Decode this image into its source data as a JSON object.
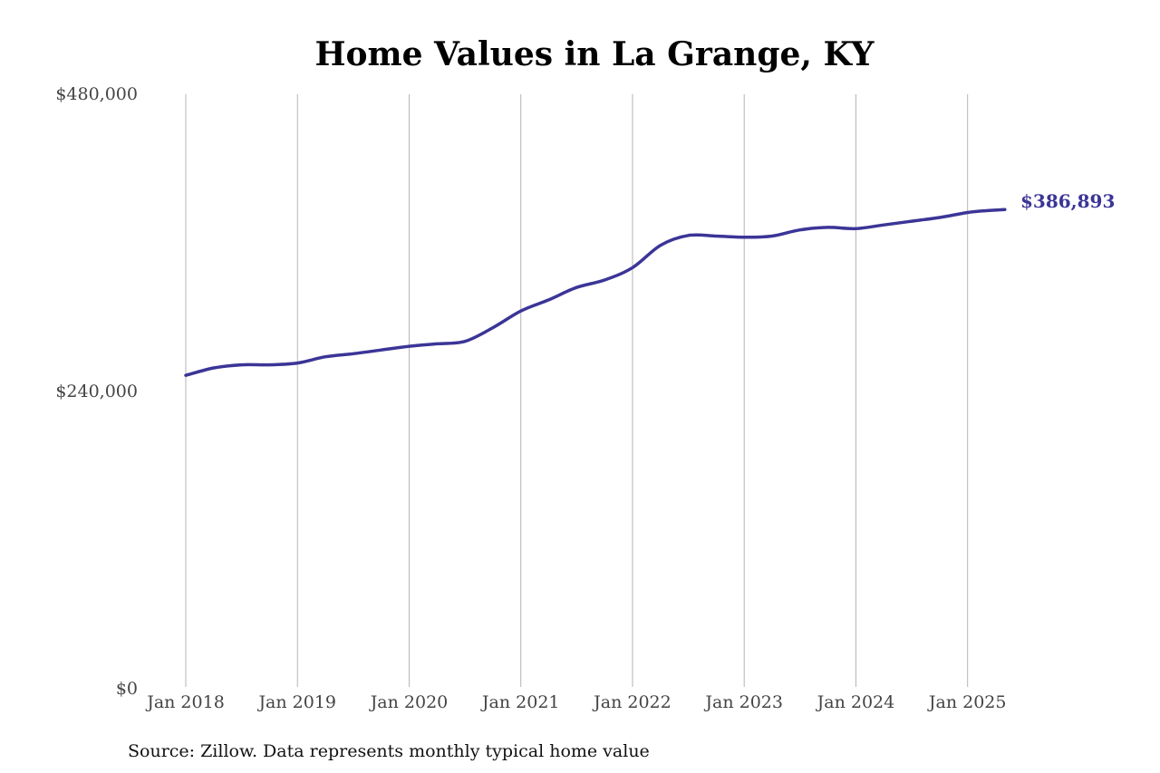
{
  "chart_data": {
    "type": "line",
    "title": "Home Values in La Grange, KY",
    "x_ticks": [
      "Jan 2018",
      "Jan 2019",
      "Jan 2020",
      "Jan 2021",
      "Jan 2022",
      "Jan 2023",
      "Jan 2024",
      "Jan 2025"
    ],
    "y_ticks": [
      "$0",
      "$240,000",
      "$480,000"
    ],
    "ylim": [
      0,
      480000
    ],
    "xlim": [
      "2018-01",
      "2025-05"
    ],
    "grid": "vertical",
    "end_label": "$386,893",
    "series": [
      {
        "color": "#3b3597",
        "points": [
          {
            "x": "2018-01",
            "y": 253000
          },
          {
            "x": "2018-04",
            "y": 259000
          },
          {
            "x": "2018-07",
            "y": 261500
          },
          {
            "x": "2018-10",
            "y": 261500
          },
          {
            "x": "2019-01",
            "y": 263000
          },
          {
            "x": "2019-04",
            "y": 268000
          },
          {
            "x": "2019-07",
            "y": 270500
          },
          {
            "x": "2019-10",
            "y": 273500
          },
          {
            "x": "2020-01",
            "y": 276500
          },
          {
            "x": "2020-04",
            "y": 278500
          },
          {
            "x": "2020-07",
            "y": 280500
          },
          {
            "x": "2020-10",
            "y": 291500
          },
          {
            "x": "2021-01",
            "y": 305000
          },
          {
            "x": "2021-04",
            "y": 314000
          },
          {
            "x": "2021-07",
            "y": 324000
          },
          {
            "x": "2021-10",
            "y": 330000
          },
          {
            "x": "2022-01",
            "y": 340000
          },
          {
            "x": "2022-04",
            "y": 358000
          },
          {
            "x": "2022-07",
            "y": 366000
          },
          {
            "x": "2022-10",
            "y": 365500
          },
          {
            "x": "2023-01",
            "y": 364500
          },
          {
            "x": "2023-04",
            "y": 365500
          },
          {
            "x": "2023-07",
            "y": 370500
          },
          {
            "x": "2023-10",
            "y": 372500
          },
          {
            "x": "2024-01",
            "y": 371500
          },
          {
            "x": "2024-04",
            "y": 374500
          },
          {
            "x": "2024-07",
            "y": 377500
          },
          {
            "x": "2024-10",
            "y": 380500
          },
          {
            "x": "2025-01",
            "y": 384500
          },
          {
            "x": "2025-03",
            "y": 386000
          },
          {
            "x": "2025-05",
            "y": 386893
          }
        ]
      }
    ]
  },
  "source": "Source: Zillow. Data represents monthly typical home value"
}
